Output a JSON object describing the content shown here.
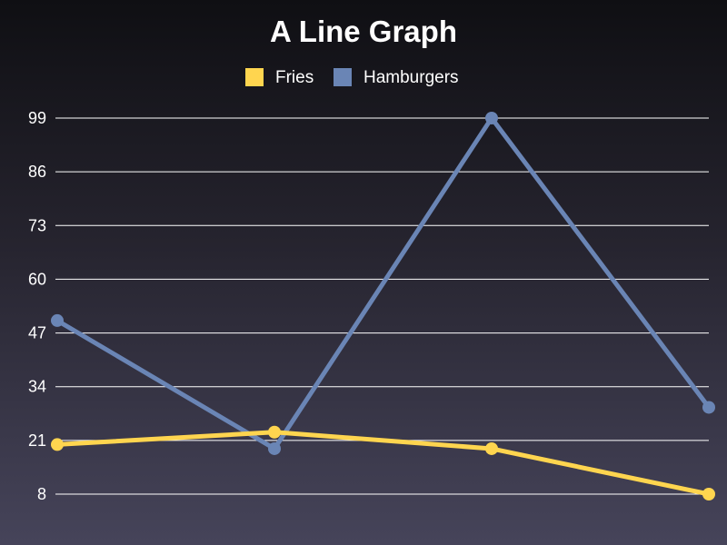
{
  "chart_data": {
    "type": "line",
    "title": "A Line Graph",
    "categories": [
      "",
      "",
      "",
      ""
    ],
    "series": [
      {
        "name": "Fries",
        "color": "#ffd54f",
        "values": [
          20,
          23,
          19,
          8
        ]
      },
      {
        "name": "Hamburgers",
        "color": "#6a85b5",
        "values": [
          50,
          19,
          99,
          29
        ]
      }
    ],
    "yticks": [
      "99",
      "86",
      "73",
      "60",
      "47",
      "34",
      "21",
      "8"
    ],
    "ylim": [
      8,
      99
    ],
    "grid": true,
    "legend_position": "top-center",
    "xlabel": "",
    "ylabel": ""
  }
}
